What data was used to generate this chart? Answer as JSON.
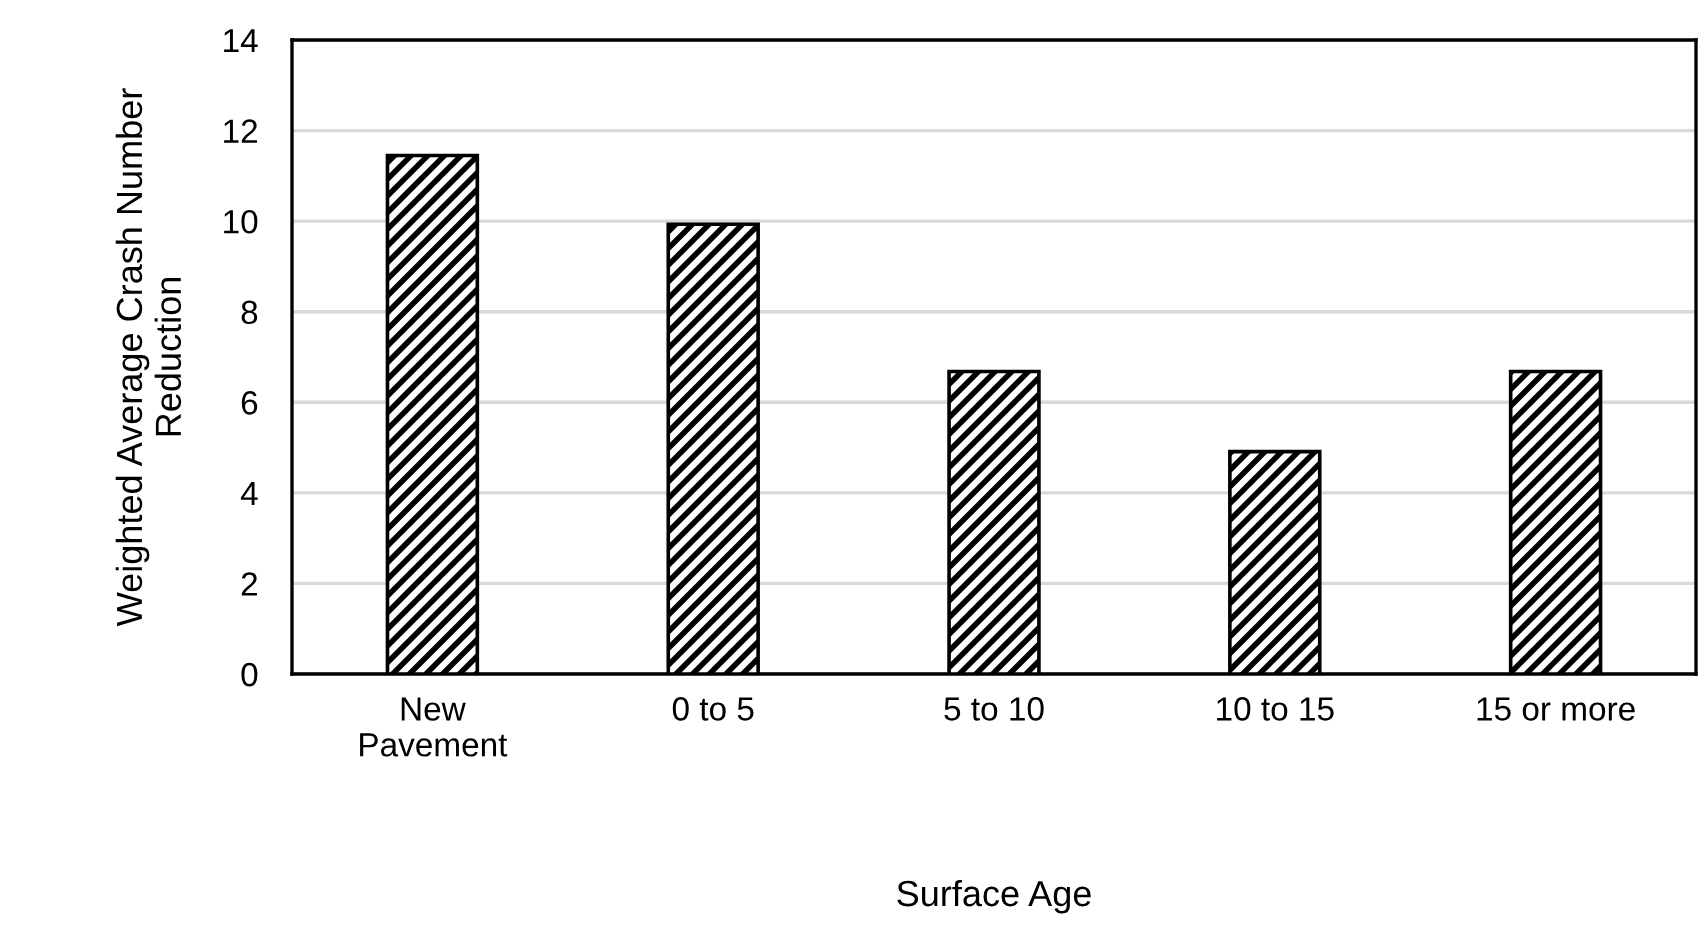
{
  "chart_data": {
    "type": "bar",
    "categories": [
      "New\nPavement",
      "0 to 5",
      "5 to 10",
      "10 to 15",
      "15 or more"
    ],
    "values": [
      11.45,
      9.93,
      6.68,
      4.91,
      6.68
    ],
    "color": "#000000",
    "xlabel": "Surface Age",
    "ylabel": "Weighted Average Crash Number\nReduction",
    "ylim": [
      0,
      14
    ],
    "yticks": [
      0,
      2,
      4,
      6,
      8,
      10,
      12,
      14
    ],
    "grid": "y"
  }
}
